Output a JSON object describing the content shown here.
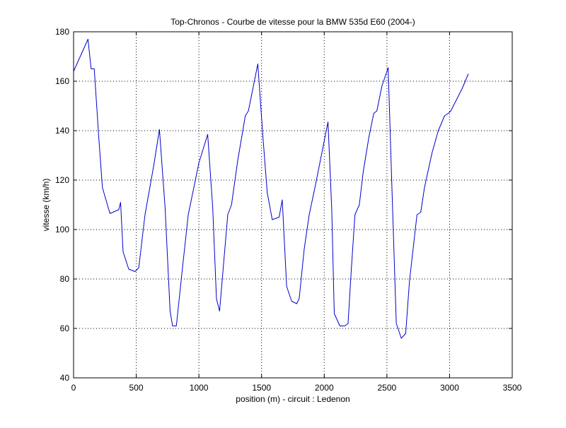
{
  "chart_data": {
    "type": "line",
    "title": "Top-Chronos - Courbe de vitesse pour la BMW 535d E60 (2004-)",
    "xlabel": "position (m) - circuit : Ledenon",
    "ylabel": "vitesse (km/h)",
    "xlim": [
      0,
      3500
    ],
    "ylim": [
      40,
      180
    ],
    "xticks": [
      0,
      500,
      1000,
      1500,
      2000,
      2500,
      3000,
      3500
    ],
    "yticks": [
      40,
      60,
      80,
      100,
      120,
      140,
      160,
      180
    ],
    "xtick_labels": [
      "0",
      "500",
      "1000",
      "1500",
      "2000",
      "2500",
      "3000",
      "3500"
    ],
    "ytick_labels": [
      "40",
      "60",
      "80",
      "100",
      "120",
      "140",
      "160",
      "180"
    ],
    "grid": true,
    "line_color": "#0000cc",
    "series": [
      {
        "x": [
          0,
          115,
          140,
          165,
          200,
          230,
          290,
          360,
          375,
          395,
          440,
          490,
          520,
          570,
          640,
          685,
          730,
          770,
          790,
          820,
          870,
          915,
          1000,
          1070,
          1110,
          1140,
          1165,
          1230,
          1260,
          1310,
          1370,
          1395,
          1470,
          1510,
          1545,
          1585,
          1640,
          1665,
          1700,
          1740,
          1780,
          1800,
          1840,
          1880,
          1930,
          2030,
          2060,
          2080,
          2125,
          2165,
          2190,
          2215,
          2245,
          2280,
          2310,
          2355,
          2395,
          2420,
          2460,
          2510,
          2545,
          2575,
          2615,
          2650,
          2680,
          2740,
          2770,
          2800,
          2860,
          2910,
          2960,
          2990,
          3010,
          3050,
          3100,
          3150
        ],
        "y": [
          164,
          177,
          165,
          165,
          138,
          117,
          106.5,
          108,
          111,
          91,
          84,
          83,
          84.5,
          106,
          126,
          140.5,
          109,
          67,
          61,
          61,
          85,
          106,
          127,
          138.5,
          109,
          72,
          67,
          106,
          110,
          128,
          146,
          148,
          167,
          138,
          115,
          104,
          105,
          112,
          77,
          71,
          70,
          72,
          92,
          106,
          118,
          143.5,
          108,
          66,
          61,
          61,
          62,
          83,
          106,
          110,
          123,
          137,
          147,
          148,
          158,
          165.5,
          109,
          62,
          56,
          58,
          79,
          106,
          107,
          117,
          131,
          140,
          146,
          147,
          148,
          152,
          157,
          163
        ]
      }
    ]
  }
}
